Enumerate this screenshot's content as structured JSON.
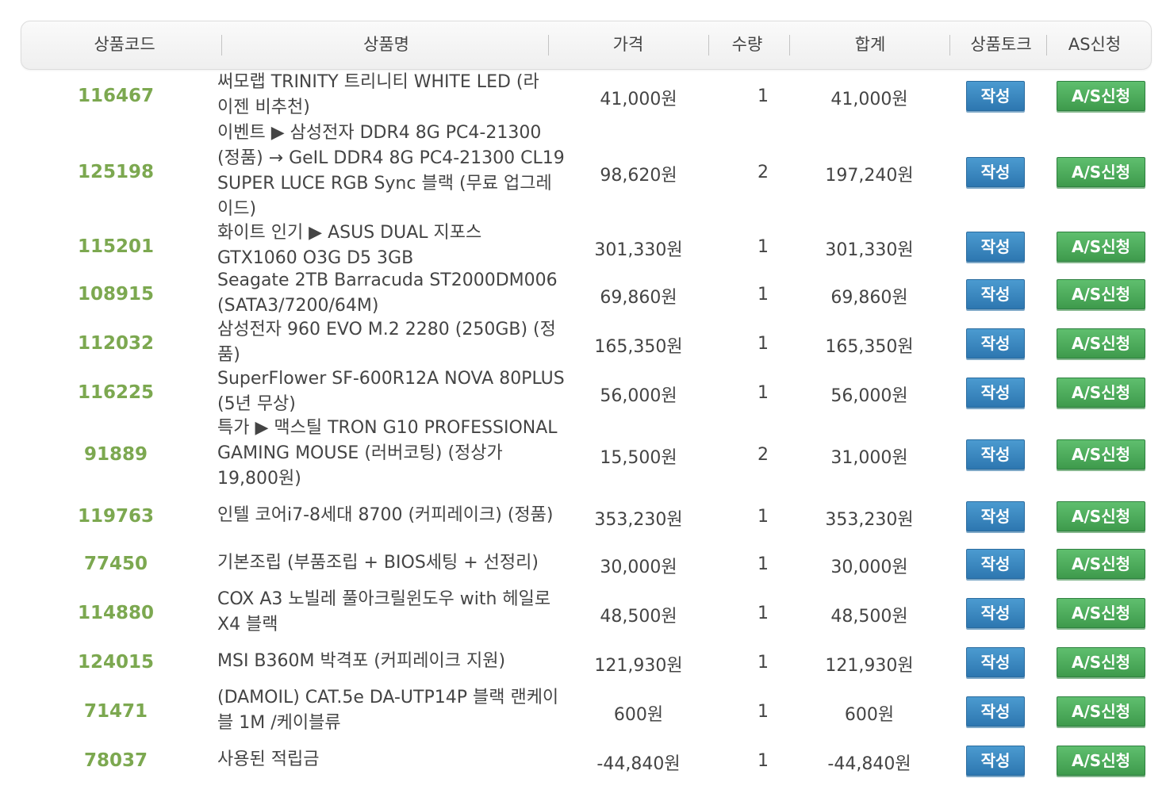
{
  "headers": {
    "code": "상품코드",
    "name": "상품명",
    "price": "가격",
    "qty": "수량",
    "total": "합계",
    "talk": "상품토크",
    "as": "AS신청"
  },
  "buttons": {
    "write": "작성",
    "as": "A/S신청"
  },
  "colors": {
    "code_text": "#7ca850",
    "write_button": "#3a8ac2",
    "as_button": "#4daa5c"
  },
  "rows": [
    {
      "code": "116467",
      "name_lines": [
        "써모랩 TRINITY 트리니티 WHITE LED (라",
        "이젠 비추천)"
      ],
      "price": "41,000원",
      "qty": "1",
      "total": "41,000원"
    },
    {
      "code": "125198",
      "name_lines": [
        "이벤트 ▶ 삼성전자 DDR4 8G PC4-21300",
        "(정품) → GeIL DDR4 8G PC4-21300 CL19",
        "SUPER LUCE RGB Sync 블랙 (무료 업그레",
        "이드)"
      ],
      "price": "98,620원",
      "qty": "2",
      "total": "197,240원"
    },
    {
      "code": "115201",
      "name_lines": [
        "화이트 인기 ▶ ASUS DUAL 지포스",
        "GTX1060 O3G D5 3GB"
      ],
      "price": "301,330원",
      "qty": "1",
      "total": "301,330원"
    },
    {
      "code": "108915",
      "name_lines": [
        "Seagate 2TB Barracuda ST2000DM006",
        "(SATA3/7200/64M)"
      ],
      "price": "69,860원",
      "qty": "1",
      "total": "69,860원"
    },
    {
      "code": "112032",
      "name_lines": [
        "삼성전자 960 EVO M.2 2280 (250GB) (정",
        "품)"
      ],
      "price": "165,350원",
      "qty": "1",
      "total": "165,350원"
    },
    {
      "code": "116225",
      "name_lines": [
        "SuperFlower SF-600R12A NOVA 80PLUS",
        "(5년 무상)"
      ],
      "price": "56,000원",
      "qty": "1",
      "total": "56,000원"
    },
    {
      "code": "91889",
      "name_lines": [
        "특가 ▶ 맥스틸 TRON G10 PROFESSIONAL",
        "GAMING MOUSE (러버코팅) (정상가",
        "19,800원)"
      ],
      "price": "15,500원",
      "qty": "2",
      "total": "31,000원"
    },
    {
      "code": "119763",
      "name_lines": [
        "인텔 코어i7-8세대 8700 (커피레이크) (정품)"
      ],
      "price": "353,230원",
      "qty": "1",
      "total": "353,230원"
    },
    {
      "code": "77450",
      "name_lines": [
        "기본조립 (부품조립 + BIOS세팅 + 선정리)"
      ],
      "price": "30,000원",
      "qty": "1",
      "total": "30,000원"
    },
    {
      "code": "114880",
      "name_lines": [
        "COX A3 노빌레 풀아크릴윈도우 with 헤일로",
        "X4 블랙"
      ],
      "price": "48,500원",
      "qty": "1",
      "total": "48,500원"
    },
    {
      "code": "124015",
      "name_lines": [
        "MSI B360M 박격포 (커피레이크 지원)"
      ],
      "price": "121,930원",
      "qty": "1",
      "total": "121,930원"
    },
    {
      "code": "71471",
      "name_lines": [
        "(DAMOIL) CAT.5e DA-UTP14P 블랙 랜케이",
        "블 1M /케이블류"
      ],
      "price": "600원",
      "qty": "1",
      "total": "600원"
    },
    {
      "code": "78037",
      "name_lines": [
        "사용된 적립금"
      ],
      "price": "-44,840원",
      "qty": "1",
      "total": "-44,840원"
    }
  ]
}
